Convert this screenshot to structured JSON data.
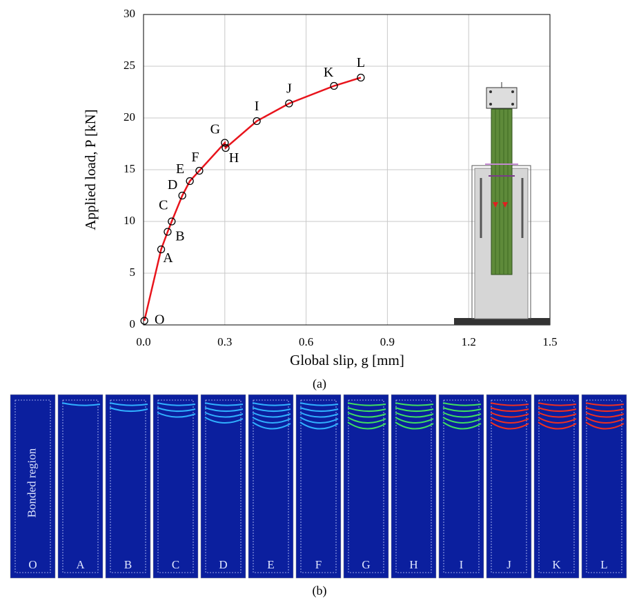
{
  "chart_data": {
    "type": "line",
    "xlabel": "Global slip, g [mm]",
    "ylabel": "Applied load, P [kN]",
    "caption": "(a)",
    "x": [
      0.003,
      0.065,
      0.089,
      0.104,
      0.143,
      0.171,
      0.206,
      0.3,
      0.303,
      0.418,
      0.537,
      0.703,
      0.802
    ],
    "point_labels": [
      "O",
      "A",
      "B",
      "C",
      "D",
      "E",
      "F",
      "G",
      "H",
      "I",
      "J",
      "K",
      "L"
    ],
    "series": [
      {
        "color": "#e8141c",
        "values": [
          0.4,
          7.3,
          9.0,
          10.0,
          12.5,
          13.9,
          14.9,
          17.6,
          17.1,
          19.7,
          21.4,
          23.1,
          23.9
        ]
      }
    ],
    "xlim": [
      0,
      1.5
    ],
    "xticks": [
      {
        "value": 0,
        "label": "0.0"
      },
      0.3,
      0.6,
      0.9,
      1.2,
      1.5
    ],
    "ylim": [
      0,
      30
    ],
    "yticks": [
      0,
      5,
      10,
      15,
      20,
      25,
      30
    ],
    "grid": true
  },
  "panels": {
    "caption": "(b)",
    "region_label": "Bonded region",
    "labels": [
      "O",
      "A",
      "B",
      "C",
      "D",
      "E",
      "F",
      "G",
      "H",
      "I",
      "J",
      "K",
      "L"
    ]
  }
}
